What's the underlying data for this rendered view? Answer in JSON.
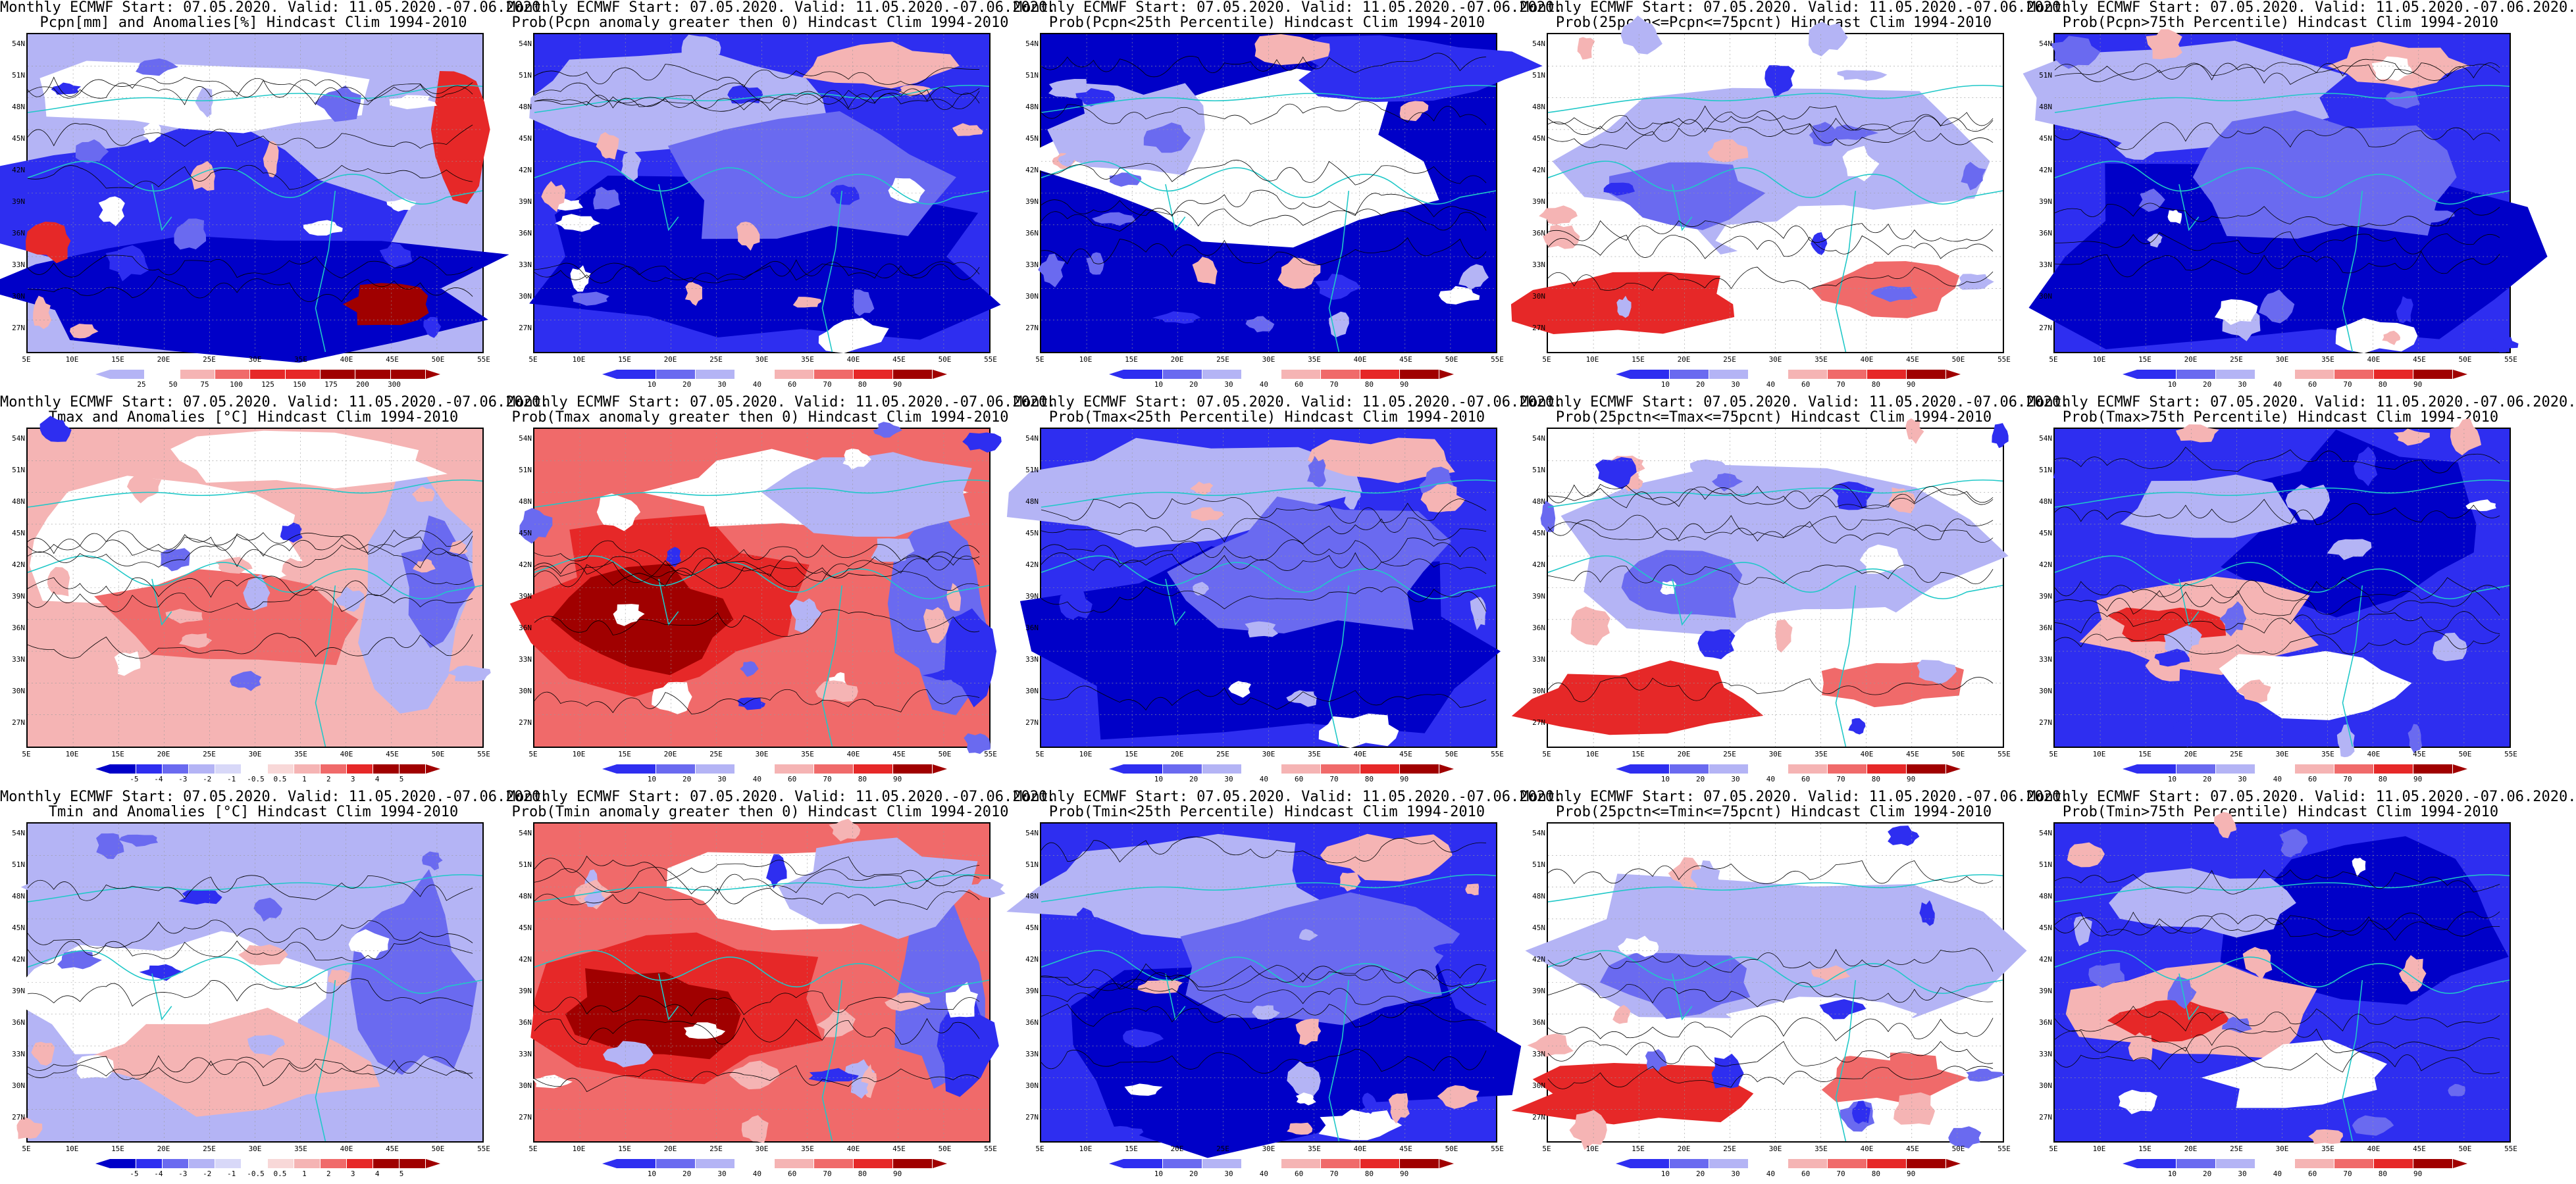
{
  "map_labels": {
    "lat": [
      "54N",
      "51N",
      "48N",
      "45N",
      "42N",
      "39N",
      "36N",
      "33N",
      "30N",
      "27N"
    ],
    "lon": [
      "5E",
      "10E",
      "15E",
      "20E",
      "25E",
      "30E",
      "35E",
      "40E",
      "45E",
      "50E",
      "55E"
    ]
  },
  "colors": {
    "dark_blue": "#0000c8",
    "blue": "#2e2ef0",
    "mid_blue": "#6a6af0",
    "light_blue": "#b4b4f5",
    "white": "#ffffff",
    "light_red": "#f5b4b4",
    "mid_red": "#f06a6a",
    "red": "#e62828",
    "dark_red": "#a00000",
    "coast": "#20c8c8",
    "contour": "#000000"
  },
  "panels": [
    {
      "id": "r1c1",
      "line1": "Monthly ECMWF Start: 07.05.2020. Valid: 11.05.2020.-07.06.2020.",
      "line2": "Pcpn[mm] and Anomalies[%] Hindcast Clim 1994-2010",
      "colorbar": [
        "25",
        "50",
        "75",
        "100",
        "125",
        "150",
        "175",
        "200",
        "300"
      ],
      "scheme": "pcpn_anom"
    },
    {
      "id": "r1c2",
      "line1": "Monthly ECMWF Start: 07.05.2020. Valid: 11.05.2020.-07.06.2020.",
      "line2": "Prob(Pcpn anomaly greater then 0) Hindcast Clim 1994-2010",
      "colorbar": [
        "10",
        "20",
        "30",
        "40",
        "60",
        "70",
        "80",
        "90"
      ],
      "scheme": "prob_blue"
    },
    {
      "id": "r1c3",
      "line1": "Monthly ECMWF Start: 07.05.2020. Valid: 11.05.2020.-07.06.2020.",
      "line2": "Prob(Pcpn<25th Percentile) Hindcast Clim 1994-2010",
      "colorbar": [
        "10",
        "20",
        "30",
        "40",
        "60",
        "70",
        "80",
        "90"
      ],
      "scheme": "prob_low"
    },
    {
      "id": "r1c4",
      "line1": "Monthly ECMWF Start: 07.05.2020. Valid: 11.05.2020.-07.06.2020.",
      "line2": "Prob(25pctn<=Pcpn<=75pcnt) Hindcast Clim 1994-2010",
      "colorbar": [
        "10",
        "20",
        "30",
        "40",
        "60",
        "70",
        "80",
        "90"
      ],
      "scheme": "prob_mid"
    },
    {
      "id": "r1c5",
      "line1": "Monthly ECMWF Start: 07.05.2020. Valid: 11.05.2020.-07.06.2020.",
      "line2": "Prob(Pcpn>75th Percentile) Hindcast Clim 1994-2010",
      "colorbar": [
        "10",
        "20",
        "30",
        "40",
        "60",
        "70",
        "80",
        "90"
      ],
      "scheme": "prob_blue"
    },
    {
      "id": "r2c1",
      "line1": "Monthly ECMWF Start: 07.05.2020. Valid: 11.05.2020.-07.06.2020.",
      "line2": "Tmax and Anomalies [°C] Hindcast Clim 1994-2010",
      "colorbar": [
        "-5",
        "-4",
        "-3",
        "-2",
        "-1",
        "-0.5",
        "0.5",
        "1",
        "2",
        "3",
        "4",
        "5"
      ],
      "scheme": "temp_anom"
    },
    {
      "id": "r2c2",
      "line1": "Monthly ECMWF Start: 07.05.2020. Valid: 11.05.2020.-07.06.2020.",
      "line2": "Prob(Tmax anomaly greater then 0) Hindcast Clim 1994-2010",
      "colorbar": [
        "10",
        "20",
        "30",
        "40",
        "60",
        "70",
        "80",
        "90"
      ],
      "scheme": "prob_red"
    },
    {
      "id": "r2c3",
      "line1": "Monthly ECMWF Start: 07.05.2020. Valid: 11.05.2020.-07.06.2020.",
      "line2": "Prob(Tmax<25th Percentile) Hindcast Clim 1994-2010",
      "colorbar": [
        "10",
        "20",
        "30",
        "40",
        "60",
        "70",
        "80",
        "90"
      ],
      "scheme": "prob_blue"
    },
    {
      "id": "r2c4",
      "line1": "Monthly ECMWF Start: 07.05.2020. Valid: 11.05.2020.-07.06.2020.",
      "line2": "Prob(25pctn<=Tmax<=75pcnt) Hindcast Clim 1994-2010",
      "colorbar": [
        "10",
        "20",
        "30",
        "40",
        "60",
        "70",
        "80",
        "90"
      ],
      "scheme": "prob_mid"
    },
    {
      "id": "r2c5",
      "line1": "Monthly ECMWF Start: 07.05.2020. Valid: 11.05.2020.-07.06.2020.",
      "line2": "Prob(Tmax>75th Percentile) Hindcast Clim 1994-2010",
      "colorbar": [
        "10",
        "20",
        "30",
        "40",
        "60",
        "70",
        "80",
        "90"
      ],
      "scheme": "prob_mixed"
    },
    {
      "id": "r3c1",
      "line1": "Monthly ECMWF Start: 07.05.2020. Valid: 11.05.2020.-07.06.2020.",
      "line2": "Tmin and Anomalies [°C] Hindcast Clim 1994-2010",
      "colorbar": [
        "-5",
        "-4",
        "-3",
        "-2",
        "-1",
        "-0.5",
        "0.5",
        "1",
        "2",
        "3",
        "4",
        "5"
      ],
      "scheme": "temp_anom2"
    },
    {
      "id": "r3c2",
      "line1": "Monthly ECMWF Start: 07.05.2020. Valid: 11.05.2020.-07.06.2020.",
      "line2": "Prob(Tmin anomaly greater then 0) Hindcast Clim 1994-2010",
      "colorbar": [
        "10",
        "20",
        "30",
        "40",
        "60",
        "70",
        "80",
        "90"
      ],
      "scheme": "prob_red"
    },
    {
      "id": "r3c3",
      "line1": "Monthly ECMWF Start: 07.05.2020. Valid: 11.05.2020.-07.06.2020.",
      "line2": "Prob(Tmin<25th Percentile) Hindcast Clim 1994-2010",
      "colorbar": [
        "10",
        "20",
        "30",
        "40",
        "60",
        "70",
        "80",
        "90"
      ],
      "scheme": "prob_blue"
    },
    {
      "id": "r3c4",
      "line1": "Monthly ECMWF Start: 07.05.2020. Valid: 11.05.2020.-07.06.2020.",
      "line2": "Prob(25pctn<=Tmin<=75pcnt) Hindcast Clim 1994-2010",
      "colorbar": [
        "10",
        "20",
        "30",
        "40",
        "60",
        "70",
        "80",
        "90"
      ],
      "scheme": "prob_mid"
    },
    {
      "id": "r3c5",
      "line1": "Monthly ECMWF Start: 07.05.2020. Valid: 11.05.2020.-07.06.2020.",
      "line2": "Prob(Tmin>75th Percentile) Hindcast Clim 1994-2010",
      "colorbar": [
        "10",
        "20",
        "30",
        "40",
        "60",
        "70",
        "80",
        "90"
      ],
      "scheme": "prob_mixed"
    }
  ]
}
